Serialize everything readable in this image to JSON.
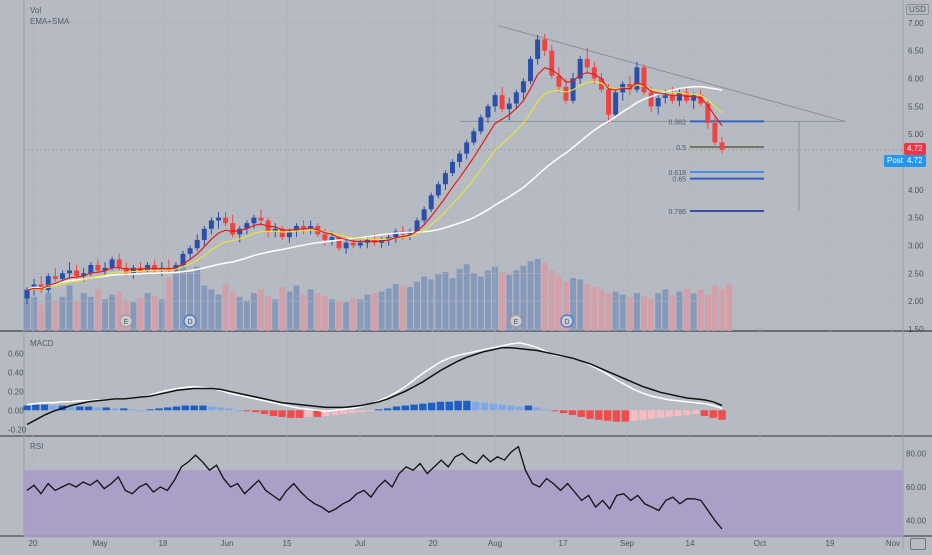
{
  "chart_data": [
    {
      "type": "candlestick",
      "title": "Vol",
      "indicator_label": "EMA+SMA",
      "currency": "USD",
      "y_ticks": [
        "7.00",
        "6.50",
        "6.00",
        "5.50",
        "5.00",
        "4.50",
        "4.00",
        "3.50",
        "3.00",
        "2.50",
        "2.00",
        "1.50"
      ],
      "ylim": [
        1.5,
        7.05
      ],
      "x_ticks": [
        "20",
        "May",
        "18",
        "Jun",
        "15",
        "Jul",
        "20",
        "Aug",
        "17",
        "Sep",
        "14",
        "Oct",
        "19",
        "Nov"
      ],
      "last_price": "4.72",
      "post_label": "Post",
      "post_price": "4.72",
      "fib_levels": [
        {
          "label": "0.382",
          "value": 5.23
        },
        {
          "label": "0.5",
          "value": 4.77
        },
        {
          "label": "0.618",
          "value": 4.32
        },
        {
          "label": "0.65",
          "value": 4.2
        },
        {
          "label": "0.786",
          "value": 3.62
        }
      ],
      "event_markers": [
        "E",
        "D",
        "E",
        "D"
      ],
      "ma_colors": {
        "ema_fast": "#e21b1b",
        "ema_slow": "#e9e23c",
        "sma": "#ffffff"
      },
      "candles": [
        [
          2.05,
          2.25,
          1.95,
          2.2
        ],
        [
          2.2,
          2.4,
          2.1,
          2.3
        ],
        [
          2.3,
          2.45,
          2.15,
          2.2
        ],
        [
          2.2,
          2.5,
          2.15,
          2.45
        ],
        [
          2.45,
          2.6,
          2.35,
          2.4
        ],
        [
          2.4,
          2.55,
          2.3,
          2.5
        ],
        [
          2.5,
          2.7,
          2.4,
          2.55
        ],
        [
          2.55,
          2.65,
          2.4,
          2.45
        ],
        [
          2.45,
          2.6,
          2.35,
          2.5
        ],
        [
          2.5,
          2.7,
          2.45,
          2.65
        ],
        [
          2.65,
          2.75,
          2.5,
          2.55
        ],
        [
          2.55,
          2.7,
          2.45,
          2.6
        ],
        [
          2.6,
          2.8,
          2.55,
          2.75
        ],
        [
          2.75,
          2.85,
          2.55,
          2.6
        ],
        [
          2.6,
          2.7,
          2.45,
          2.5
        ],
        [
          2.5,
          2.65,
          2.4,
          2.6
        ],
        [
          2.6,
          2.7,
          2.5,
          2.55
        ],
        [
          2.55,
          2.7,
          2.5,
          2.65
        ],
        [
          2.65,
          2.75,
          2.5,
          2.55
        ],
        [
          2.55,
          2.7,
          2.45,
          2.6
        ],
        [
          2.6,
          2.75,
          2.5,
          2.55
        ],
        [
          2.55,
          2.7,
          2.5,
          2.65
        ],
        [
          2.65,
          2.9,
          2.6,
          2.85
        ],
        [
          2.85,
          3.0,
          2.75,
          2.95
        ],
        [
          2.95,
          3.2,
          2.9,
          3.1
        ],
        [
          3.1,
          3.35,
          3.0,
          3.3
        ],
        [
          3.3,
          3.5,
          3.2,
          3.45
        ],
        [
          3.45,
          3.6,
          3.3,
          3.5
        ],
        [
          3.5,
          3.6,
          3.35,
          3.4
        ],
        [
          3.4,
          3.55,
          3.15,
          3.2
        ],
        [
          3.2,
          3.35,
          3.05,
          3.3
        ],
        [
          3.3,
          3.45,
          3.2,
          3.4
        ],
        [
          3.4,
          3.55,
          3.3,
          3.5
        ],
        [
          3.5,
          3.65,
          3.35,
          3.45
        ],
        [
          3.45,
          3.5,
          3.15,
          3.25
        ],
        [
          3.25,
          3.4,
          3.15,
          3.3
        ],
        [
          3.3,
          3.35,
          3.1,
          3.15
        ],
        [
          3.15,
          3.3,
          3.05,
          3.25
        ],
        [
          3.25,
          3.4,
          3.15,
          3.35
        ],
        [
          3.35,
          3.45,
          3.2,
          3.3
        ],
        [
          3.3,
          3.45,
          3.2,
          3.35
        ],
        [
          3.35,
          3.4,
          3.15,
          3.2
        ],
        [
          3.2,
          3.3,
          3.0,
          3.1
        ],
        [
          3.1,
          3.25,
          3.0,
          3.15
        ],
        [
          3.15,
          3.2,
          2.9,
          2.95
        ],
        [
          2.95,
          3.1,
          2.85,
          3.05
        ],
        [
          3.05,
          3.15,
          2.95,
          3.0
        ],
        [
          3.0,
          3.1,
          2.95,
          3.05
        ],
        [
          3.05,
          3.15,
          2.95,
          3.1
        ],
        [
          3.1,
          3.2,
          3.0,
          3.05
        ],
        [
          3.05,
          3.15,
          2.95,
          3.1
        ],
        [
          3.1,
          3.2,
          3.0,
          3.15
        ],
        [
          3.15,
          3.3,
          3.05,
          3.25
        ],
        [
          3.25,
          3.35,
          3.1,
          3.2
        ],
        [
          3.2,
          3.3,
          3.1,
          3.25
        ],
        [
          3.25,
          3.5,
          3.2,
          3.45
        ],
        [
          3.45,
          3.7,
          3.4,
          3.65
        ],
        [
          3.65,
          3.95,
          3.6,
          3.9
        ],
        [
          3.9,
          4.15,
          3.85,
          4.1
        ],
        [
          4.1,
          4.35,
          4.0,
          4.3
        ],
        [
          4.3,
          4.55,
          4.25,
          4.5
        ],
        [
          4.5,
          4.7,
          4.4,
          4.65
        ],
        [
          4.65,
          4.9,
          4.55,
          4.85
        ],
        [
          4.85,
          5.1,
          4.8,
          5.05
        ],
        [
          5.05,
          5.35,
          5.0,
          5.3
        ],
        [
          5.3,
          5.55,
          5.2,
          5.5
        ],
        [
          5.5,
          5.75,
          5.4,
          5.7
        ],
        [
          5.7,
          5.85,
          5.4,
          5.45
        ],
        [
          5.45,
          5.65,
          5.25,
          5.55
        ],
        [
          5.55,
          5.8,
          5.45,
          5.75
        ],
        [
          5.75,
          6.0,
          5.6,
          5.95
        ],
        [
          5.95,
          6.4,
          5.9,
          6.35
        ],
        [
          6.35,
          6.78,
          6.25,
          6.7
        ],
        [
          6.7,
          6.8,
          6.4,
          6.5
        ],
        [
          6.5,
          6.6,
          6.0,
          6.05
        ],
        [
          6.05,
          6.2,
          5.75,
          5.85
        ],
        [
          5.85,
          6.0,
          5.55,
          5.6
        ],
        [
          5.6,
          6.1,
          5.55,
          6.0
        ],
        [
          6.0,
          6.4,
          5.9,
          6.35
        ],
        [
          6.35,
          6.55,
          6.1,
          6.2
        ],
        [
          6.2,
          6.3,
          5.9,
          6.0
        ],
        [
          6.0,
          6.1,
          5.75,
          5.8
        ],
        [
          5.8,
          5.9,
          5.2,
          5.35
        ],
        [
          5.35,
          5.8,
          5.3,
          5.75
        ],
        [
          5.75,
          5.95,
          5.6,
          5.9
        ],
        [
          5.9,
          6.05,
          5.7,
          5.8
        ],
        [
          5.8,
          6.3,
          5.75,
          6.2
        ],
        [
          6.2,
          6.25,
          5.7,
          5.75
        ],
        [
          5.75,
          5.85,
          5.4,
          5.5
        ],
        [
          5.5,
          5.75,
          5.35,
          5.65
        ],
        [
          5.65,
          5.8,
          5.55,
          5.7
        ],
        [
          5.7,
          5.85,
          5.55,
          5.6
        ],
        [
          5.6,
          5.8,
          5.5,
          5.75
        ],
        [
          5.75,
          5.85,
          5.55,
          5.6
        ],
        [
          5.6,
          5.75,
          5.45,
          5.7
        ],
        [
          5.7,
          5.8,
          5.5,
          5.55
        ],
        [
          5.55,
          5.6,
          5.1,
          5.2
        ],
        [
          5.2,
          5.3,
          4.8,
          4.85
        ],
        [
          4.85,
          4.95,
          4.65,
          4.72
        ]
      ],
      "volumes": [
        55,
        45,
        35,
        50,
        40,
        45,
        60,
        40,
        50,
        45,
        55,
        42,
        48,
        52,
        40,
        38,
        44,
        50,
        46,
        42,
        70,
        75,
        90,
        78,
        85,
        60,
        55,
        48,
        62,
        52,
        45,
        40,
        50,
        55,
        46,
        42,
        58,
        52,
        60,
        48,
        55,
        50,
        46,
        42,
        40,
        38,
        44,
        42,
        48,
        50,
        52,
        56,
        62,
        60,
        58,
        65,
        72,
        68,
        75,
        78,
        70,
        82,
        88,
        76,
        72,
        80,
        85,
        78,
        74,
        80,
        86,
        92,
        95,
        90,
        80,
        72,
        65,
        70,
        68,
        62,
        58,
        55,
        50,
        52,
        48,
        45,
        50,
        46,
        42,
        50,
        55,
        48,
        52,
        56,
        50,
        55,
        48,
        60,
        55,
        62
      ]
    },
    {
      "type": "line",
      "title": "MACD",
      "y_ticks": [
        "0.60",
        "0.40",
        "0.20",
        "0.00",
        "-0.20"
      ],
      "ylim": [
        -0.25,
        0.72
      ],
      "series": [
        {
          "color": "#ffffff",
          "values": [
            0.06,
            0.07,
            0.08,
            0.08,
            0.09,
            0.09,
            0.1,
            0.1,
            0.11,
            0.11,
            0.12,
            0.12,
            0.13,
            0.14,
            0.16,
            0.19,
            0.21,
            0.23,
            0.24,
            0.25,
            0.24,
            0.23,
            0.21,
            0.18,
            0.16,
            0.14,
            0.12,
            0.1,
            0.08,
            0.06,
            0.04,
            0.02,
            0.01,
            0.0,
            -0.01,
            0.0,
            0.01,
            0.02,
            0.04,
            0.07,
            0.1,
            0.14,
            0.19,
            0.25,
            0.32,
            0.39,
            0.45,
            0.51,
            0.55,
            0.58,
            0.6,
            0.62,
            0.64,
            0.66,
            0.68,
            0.7,
            0.71,
            0.69,
            0.66,
            0.62,
            0.58,
            0.57,
            0.55,
            0.52,
            0.48,
            0.43,
            0.38,
            0.32,
            0.27,
            0.22,
            0.18,
            0.15,
            0.13,
            0.11,
            0.1,
            0.09,
            0.08,
            0.07,
            0.05,
            0.02
          ]
        },
        {
          "color": "#111111",
          "values": [
            -0.15,
            -0.1,
            -0.05,
            -0.01,
            0.02,
            0.05,
            0.07,
            0.09,
            0.1,
            0.11,
            0.12,
            0.12,
            0.13,
            0.14,
            0.15,
            0.17,
            0.19,
            0.21,
            0.22,
            0.23,
            0.23,
            0.23,
            0.22,
            0.2,
            0.18,
            0.16,
            0.14,
            0.12,
            0.1,
            0.08,
            0.07,
            0.06,
            0.05,
            0.04,
            0.03,
            0.03,
            0.03,
            0.04,
            0.05,
            0.07,
            0.09,
            0.12,
            0.16,
            0.2,
            0.25,
            0.3,
            0.36,
            0.42,
            0.47,
            0.52,
            0.56,
            0.59,
            0.62,
            0.64,
            0.66,
            0.66,
            0.65,
            0.64,
            0.63,
            0.61,
            0.59,
            0.57,
            0.55,
            0.52,
            0.49,
            0.45,
            0.41,
            0.37,
            0.33,
            0.29,
            0.25,
            0.22,
            0.19,
            0.17,
            0.15,
            0.13,
            0.12,
            0.11,
            0.09,
            0.05
          ]
        }
      ],
      "histogram": [
        0.05,
        0.06,
        0.06,
        0.05,
        0.05,
        0.04,
        0.04,
        0.04,
        0.03,
        0.03,
        0.02,
        0.02,
        0.01,
        0.0,
        0.01,
        0.02,
        0.03,
        0.04,
        0.05,
        0.05,
        0.05,
        0.04,
        0.03,
        0.02,
        0.0,
        -0.01,
        -0.02,
        -0.04,
        -0.06,
        -0.07,
        -0.08,
        -0.08,
        -0.07,
        -0.07,
        -0.06,
        -0.05,
        -0.04,
        -0.03,
        -0.02,
        -0.01,
        0.01,
        0.02,
        0.04,
        0.05,
        0.06,
        0.07,
        0.08,
        0.09,
        0.09,
        0.1,
        0.1,
        0.09,
        0.08,
        0.07,
        0.06,
        0.05,
        0.04,
        0.05,
        0.03,
        0.01,
        -0.01,
        -0.03,
        -0.05,
        -0.07,
        -0.09,
        -0.1,
        -0.11,
        -0.12,
        -0.12,
        -0.11,
        -0.1,
        -0.09,
        -0.08,
        -0.07,
        -0.06,
        -0.05,
        -0.04,
        -0.06,
        -0.08,
        -0.1
      ],
      "hist_colors": {
        "pos_strong": "#1e5fc7",
        "pos_weak": "#7fa8e6",
        "neg_strong": "#f14b4b",
        "neg_weak": "#f7bcc1"
      }
    },
    {
      "type": "line",
      "title": "RSI",
      "y_ticks": [
        "80.00",
        "60.00",
        "40.00"
      ],
      "ylim": [
        32,
        88
      ],
      "band": [
        30,
        70
      ],
      "band_color": "#a99cc8",
      "series": [
        {
          "color": "#111111",
          "values": [
            58,
            61,
            56,
            62,
            58,
            60,
            62,
            60,
            63,
            61,
            64,
            59,
            62,
            66,
            58,
            56,
            60,
            62,
            57,
            60,
            58,
            64,
            72,
            75,
            79,
            75,
            70,
            73,
            65,
            60,
            62,
            56,
            60,
            64,
            58,
            55,
            52,
            58,
            62,
            57,
            53,
            50,
            48,
            45,
            47,
            50,
            52,
            56,
            58,
            54,
            60,
            64,
            60,
            68,
            72,
            70,
            74,
            68,
            72,
            76,
            72,
            78,
            80,
            76,
            74,
            79,
            75,
            78,
            76,
            81,
            84,
            70,
            62,
            60,
            65,
            62,
            58,
            62,
            57,
            52,
            55,
            48,
            52,
            47,
            55,
            56,
            52,
            55,
            50,
            48,
            46,
            52,
            54,
            50,
            53,
            53,
            52,
            46,
            40,
            35
          ]
        }
      ]
    }
  ]
}
